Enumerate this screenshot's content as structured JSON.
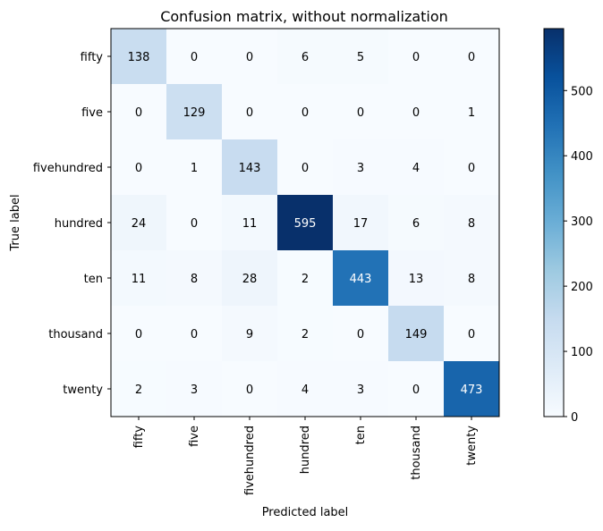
{
  "chart_data": {
    "type": "heatmap",
    "title": "Confusion matrix, without normalization",
    "xlabel": "Predicted label",
    "ylabel": "True label",
    "x_categories": [
      "fifty",
      "five",
      "fivehundred",
      "hundred",
      "ten",
      "thousand",
      "twenty"
    ],
    "y_categories": [
      "fifty",
      "five",
      "fivehundred",
      "hundred",
      "ten",
      "thousand",
      "twenty"
    ],
    "values": [
      [
        138,
        0,
        0,
        6,
        5,
        0,
        0
      ],
      [
        0,
        129,
        0,
        0,
        0,
        0,
        1
      ],
      [
        0,
        1,
        143,
        0,
        3,
        4,
        0
      ],
      [
        24,
        0,
        11,
        595,
        17,
        6,
        8
      ],
      [
        11,
        8,
        28,
        2,
        443,
        13,
        8
      ],
      [
        0,
        0,
        9,
        2,
        0,
        149,
        0
      ],
      [
        2,
        3,
        0,
        4,
        3,
        0,
        473
      ]
    ],
    "colorbar": {
      "ticks": [
        0,
        100,
        200,
        300,
        400,
        500
      ],
      "range": [
        0,
        595
      ],
      "colormap": "Blues"
    },
    "annotation_colors": {
      "dark_text": "#000000",
      "light_text": "#ffffff"
    }
  }
}
